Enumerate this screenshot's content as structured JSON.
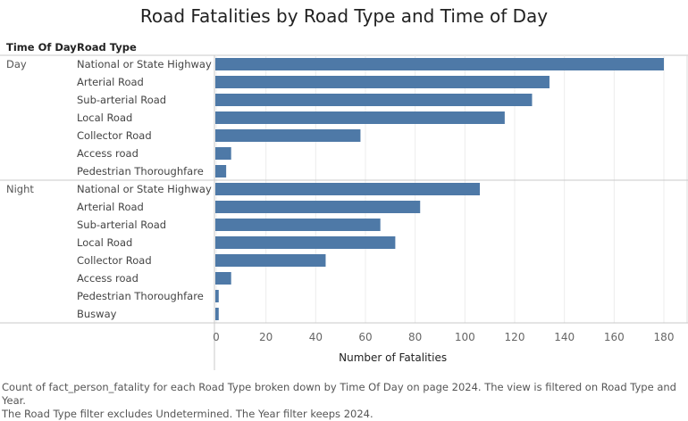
{
  "chart_data": {
    "type": "bar",
    "orientation": "horizontal",
    "title": "Road Fatalities by Road Type and Time of Day",
    "row_headers": [
      "Time Of Day",
      "Road Type"
    ],
    "xlabel": "Number of Fatalities",
    "xlim": [
      0,
      185
    ],
    "xticks": [
      0,
      20,
      40,
      60,
      80,
      100,
      120,
      140,
      160,
      180
    ],
    "grid": true,
    "bar_color": "#4e79a7",
    "groups": [
      {
        "name": "Day",
        "categories": [
          "National or State Highway",
          "Arterial Road",
          "Sub-arterial Road",
          "Local Road",
          "Collector Road",
          "Access road",
          "Pedestrian Thoroughfare"
        ],
        "values": [
          180,
          134,
          127,
          116,
          58,
          6,
          4
        ]
      },
      {
        "name": "Night",
        "categories": [
          "National or State Highway",
          "Arterial Road",
          "Sub-arterial Road",
          "Local Road",
          "Collector Road",
          "Access road",
          "Pedestrian Thoroughfare",
          "Busway"
        ],
        "values": [
          106,
          82,
          66,
          72,
          44,
          6,
          1,
          1
        ]
      }
    ]
  },
  "caption": {
    "line1": "Count of fact_person_fatality for each Road Type broken down by Time Of Day on page 2024.  The view is filtered on Road Type and Year.",
    "line2": "The Road Type filter excludes Undetermined. The Year filter keeps 2024."
  }
}
